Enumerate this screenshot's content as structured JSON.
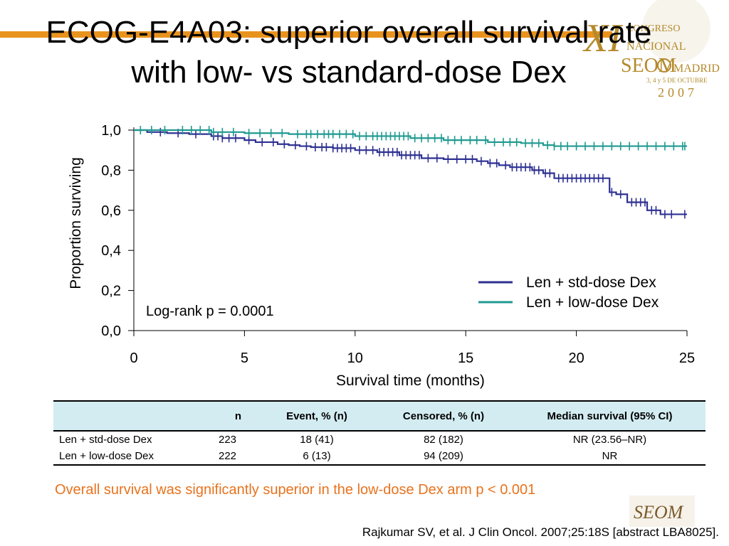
{
  "title": {
    "line1": "ECOG-E4A03: superior overall survival rate",
    "line2": "with low- vs standard-dose Dex"
  },
  "logo": {
    "numeral": "XI",
    "congreso_line1": "CONGRESO",
    "congreso_line2": "NACIONAL",
    "org_left": "SEOM",
    "org_right": "MADRID",
    "dates": "3, 4 y 5 DE OCTUBRE",
    "year": "2007",
    "footer_mark": "SEOM"
  },
  "colors": {
    "std_dose": "#2e3192",
    "low_dose": "#1f9a90",
    "accent": "#e8931e",
    "conclusion_text": "#e8731e",
    "table_header_bg": "#d3ecf1"
  },
  "chart_data": {
    "type": "line",
    "step": true,
    "xlabel": "Survival time (months)",
    "ylabel": "Proportion surviving",
    "xlim": [
      0,
      25
    ],
    "ylim": [
      0,
      1
    ],
    "x_ticks": [
      "0",
      "5",
      "10",
      "15",
      "20",
      "25"
    ],
    "x_tick_values": [
      0,
      5,
      10,
      15,
      20,
      25
    ],
    "y_ticks": [
      "0,0",
      "0,2",
      "0,4",
      "0,6",
      "0,8",
      "1,0"
    ],
    "y_tick_values": [
      0,
      0.2,
      0.4,
      0.6,
      0.8,
      1.0
    ],
    "annotation": "Log-rank p = 0.0001",
    "legend_position": "right",
    "series": [
      {
        "name": "Len + std-dose Dex",
        "color": "#2e3192",
        "steps": [
          [
            0,
            1.0
          ],
          [
            0.6,
            0.99
          ],
          [
            1.5,
            0.985
          ],
          [
            2.5,
            0.98
          ],
          [
            3.5,
            0.97
          ],
          [
            4.0,
            0.96
          ],
          [
            5.0,
            0.95
          ],
          [
            5.5,
            0.94
          ],
          [
            6.5,
            0.93
          ],
          [
            7.0,
            0.925
          ],
          [
            7.5,
            0.92
          ],
          [
            8.0,
            0.915
          ],
          [
            9.0,
            0.91
          ],
          [
            10.0,
            0.9
          ],
          [
            11.0,
            0.89
          ],
          [
            12.0,
            0.875
          ],
          [
            13.0,
            0.86
          ],
          [
            14.0,
            0.855
          ],
          [
            15.5,
            0.845
          ],
          [
            16.0,
            0.835
          ],
          [
            16.5,
            0.825
          ],
          [
            17.0,
            0.815
          ],
          [
            18.0,
            0.8
          ],
          [
            18.5,
            0.785
          ],
          [
            19.0,
            0.76
          ],
          [
            21.5,
            0.69
          ],
          [
            21.8,
            0.68
          ],
          [
            22.3,
            0.64
          ],
          [
            23.2,
            0.6
          ],
          [
            23.8,
            0.58
          ]
        ],
        "end_x": 25,
        "censor_x": [
          1.2,
          2.0,
          2.8,
          3.6,
          3.8,
          4.0,
          4.3,
          4.6,
          5.2,
          5.8,
          6.3,
          6.8,
          7.3,
          7.8,
          8.2,
          8.5,
          8.7,
          9.0,
          9.2,
          9.4,
          9.6,
          9.8,
          10.2,
          10.5,
          10.8,
          11.1,
          11.3,
          11.5,
          11.7,
          11.9,
          12.1,
          12.3,
          12.5,
          12.7,
          12.9,
          13.3,
          13.7,
          14.2,
          14.6,
          15.0,
          15.3,
          15.7,
          16.1,
          16.4,
          16.8,
          17.1,
          17.3,
          17.5,
          17.7,
          17.9,
          18.1,
          18.3,
          18.6,
          18.8,
          19.2,
          19.4,
          19.6,
          19.8,
          20.0,
          20.2,
          20.4,
          20.6,
          20.8,
          21.0,
          21.2,
          21.6,
          22.0,
          22.5,
          22.7,
          22.9,
          23.1,
          23.4,
          23.6,
          24.0,
          24.3,
          24.9
        ],
        "censor_note": "tick marks indicate censored observations"
      },
      {
        "name": "Len + low-dose Dex",
        "color": "#1f9a90",
        "steps": [
          [
            0,
            1.0
          ],
          [
            3.5,
            0.99
          ],
          [
            5.0,
            0.985
          ],
          [
            7.0,
            0.98
          ],
          [
            10.0,
            0.97
          ],
          [
            12.5,
            0.96
          ],
          [
            14.0,
            0.95
          ],
          [
            16.0,
            0.94
          ],
          [
            17.5,
            0.935
          ],
          [
            18.5,
            0.925
          ],
          [
            19.0,
            0.92
          ]
        ],
        "end_x": 25,
        "censor_x": [
          0.3,
          0.8,
          1.4,
          2.2,
          2.6,
          3.0,
          3.4,
          3.6,
          4.0,
          4.5,
          5.2,
          5.7,
          6.2,
          6.7,
          7.4,
          7.8,
          8.0,
          8.3,
          8.6,
          8.8,
          9.0,
          9.3,
          9.6,
          9.9,
          10.2,
          10.5,
          10.8,
          11.0,
          11.2,
          11.4,
          11.6,
          11.8,
          12.0,
          12.2,
          12.4,
          12.7,
          13.0,
          13.3,
          13.6,
          13.9,
          14.2,
          14.5,
          14.8,
          15.2,
          15.5,
          15.9,
          16.3,
          16.7,
          17.0,
          17.3,
          17.7,
          18.0,
          18.3,
          18.7,
          19.0,
          19.3,
          19.6,
          20.0,
          20.4,
          20.8,
          21.2,
          21.6,
          22.0,
          22.4,
          22.8,
          23.2,
          23.6,
          24.0,
          24.4,
          24.8,
          24.9
        ]
      }
    ]
  },
  "table": {
    "headers": [
      "",
      "n",
      "Event, % (n)",
      "Censored, % (n)",
      "Median survival (95% CI)"
    ],
    "rows": [
      {
        "arm": "Len + std-dose Dex",
        "n": "223",
        "event": "18 (41)",
        "censored": "82 (182)",
        "median": "NR (23.56–NR)"
      },
      {
        "arm": "Len + low-dose Dex",
        "n": "222",
        "event": "6 (13)",
        "censored": "94 (209)",
        "median": "NR"
      }
    ]
  },
  "conclusion": "Overall survival was significantly superior in the low-dose Dex arm p < 0.001",
  "citation": "Rajkumar SV, et al. J Clin Oncol. 2007;25:18S [abstract LBA8025]."
}
